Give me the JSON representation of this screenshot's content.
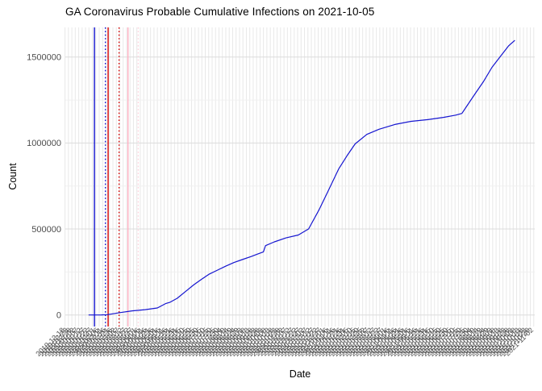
{
  "chart": {
    "title": "GA Coronavirus Probable Cumulative Infections on 2021-10-05",
    "x_axis": {
      "title": "Date"
    },
    "y_axis": {
      "title": "Count"
    }
  },
  "chart_data": {
    "type": "line",
    "title": "GA Coronavirus Probable Cumulative Infections on 2021-10-05",
    "xlabel": "Date",
    "ylabel": "Count",
    "legend": "none",
    "grid": "on",
    "background": "#ffffff",
    "x_type": "date",
    "x_data_range": [
      "2020-01-22",
      "2021-10-05"
    ],
    "ylim": [
      -67000,
      1672000
    ],
    "y_ticks": [
      {
        "value": 0,
        "label": "0"
      },
      {
        "value": 500000,
        "label": "500000"
      },
      {
        "value": 1000000,
        "label": "1000000"
      },
      {
        "value": 1500000,
        "label": "1500000"
      }
    ],
    "y_minor_ticks": [
      250000,
      750000,
      1250000
    ],
    "x_ticks_estimated": {
      "start": "2019-12-18",
      "end": "2021-11-02",
      "interval_days": 5,
      "note": "dense rotated date labels, heavily overlapping and individually illegible"
    },
    "series": [
      {
        "name": "Probable cumulative infections",
        "color": "#1515d0",
        "points": [
          [
            "2020-01-22",
            0
          ],
          [
            "2020-02-09",
            500
          ],
          [
            "2020-02-18",
            2000
          ],
          [
            "2020-03-08",
            14000
          ],
          [
            "2020-03-25",
            24000
          ],
          [
            "2020-04-13",
            31000
          ],
          [
            "2020-05-01",
            41000
          ],
          [
            "2020-05-13",
            66000
          ],
          [
            "2020-05-19",
            73000
          ],
          [
            "2020-05-30",
            97000
          ],
          [
            "2020-06-11",
            136000
          ],
          [
            "2020-06-23",
            175000
          ],
          [
            "2020-07-05",
            209000
          ],
          [
            "2020-07-16",
            238000
          ],
          [
            "2020-07-28",
            261000
          ],
          [
            "2020-08-09",
            284000
          ],
          [
            "2020-08-21",
            305000
          ],
          [
            "2020-09-02",
            322000
          ],
          [
            "2020-09-15",
            340000
          ],
          [
            "2020-09-23",
            352000
          ],
          [
            "2020-10-03",
            367000
          ],
          [
            "2020-10-06",
            403000
          ],
          [
            "2020-10-19",
            425000
          ],
          [
            "2020-11-05",
            448000
          ],
          [
            "2020-11-23",
            465000
          ],
          [
            "2020-12-08",
            500000
          ],
          [
            "2020-12-23",
            610000
          ],
          [
            "2021-01-03",
            700000
          ],
          [
            "2021-01-09",
            750000
          ],
          [
            "2021-01-21",
            850000
          ],
          [
            "2021-02-02",
            925000
          ],
          [
            "2021-02-14",
            995000
          ],
          [
            "2021-03-03",
            1050000
          ],
          [
            "2021-03-21",
            1080000
          ],
          [
            "2021-04-13",
            1108000
          ],
          [
            "2021-05-07",
            1126000
          ],
          [
            "2021-05-31",
            1136000
          ],
          [
            "2021-06-23",
            1149000
          ],
          [
            "2021-07-11",
            1162000
          ],
          [
            "2021-07-20",
            1172000
          ],
          [
            "2021-07-28",
            1220000
          ],
          [
            "2021-08-09",
            1290000
          ],
          [
            "2021-08-21",
            1360000
          ],
          [
            "2021-09-02",
            1440000
          ],
          [
            "2021-09-14",
            1502000
          ],
          [
            "2021-09-26",
            1564000
          ],
          [
            "2021-10-05",
            1596000
          ]
        ]
      }
    ],
    "vlines": [
      {
        "date": "2020-01-30",
        "color": "#1515d0",
        "style": "solid"
      },
      {
        "date": "2020-02-15",
        "color": "#1515d0",
        "style": "dotted"
      },
      {
        "date": "2020-02-19",
        "color": "#d40000",
        "style": "solid"
      },
      {
        "date": "2020-03-06",
        "color": "#d40000",
        "style": "dotted"
      },
      {
        "date": "2020-03-19",
        "color": "#ffaec0",
        "style": "solid"
      },
      {
        "date": "2020-04-03",
        "color": "#ffd2dc",
        "style": "dotted"
      }
    ],
    "colors": {
      "line_blue": "#1515d0",
      "marker_red": "#d40000",
      "marker_pink": "#ffaec0",
      "marker_pink_light": "#ffd2dc",
      "grid_vertical": "#e8e8e8",
      "grid_major_h": "#dcdcdc",
      "grid_minor_h": "#f0f0f0",
      "tick_text": "#4d4d4d"
    }
  }
}
